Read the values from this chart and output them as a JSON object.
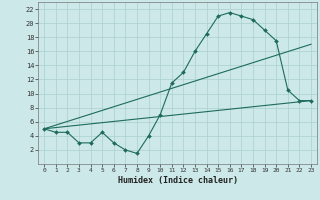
{
  "title": "",
  "xlabel": "Humidex (Indice chaleur)",
  "bg_color": "#cce8e8",
  "line_color": "#1e6b5e",
  "grid_color": "#aacfcf",
  "xlim": [
    -0.5,
    23.5
  ],
  "ylim": [
    0,
    23
  ],
  "xticks": [
    0,
    1,
    2,
    3,
    4,
    5,
    6,
    7,
    8,
    9,
    10,
    11,
    12,
    13,
    14,
    15,
    16,
    17,
    18,
    19,
    20,
    21,
    22,
    23
  ],
  "yticks": [
    2,
    4,
    6,
    8,
    10,
    12,
    14,
    16,
    18,
    20,
    22
  ],
  "line1_x": [
    0,
    1,
    2,
    3,
    4,
    5,
    6,
    7,
    8,
    9,
    10,
    11,
    12,
    13,
    14,
    15,
    16,
    17,
    18,
    19,
    20,
    21,
    22,
    23
  ],
  "line1_y": [
    5,
    4.5,
    4.5,
    3,
    3,
    4.5,
    3,
    2,
    1.5,
    4,
    7,
    11.5,
    13,
    16,
    18.5,
    21,
    21.5,
    21,
    20.5,
    19,
    17.5,
    10.5,
    9,
    9
  ],
  "line2_x": [
    0,
    23
  ],
  "line2_y": [
    5,
    9
  ],
  "line3_x": [
    0,
    23
  ],
  "line3_y": [
    5,
    17
  ]
}
